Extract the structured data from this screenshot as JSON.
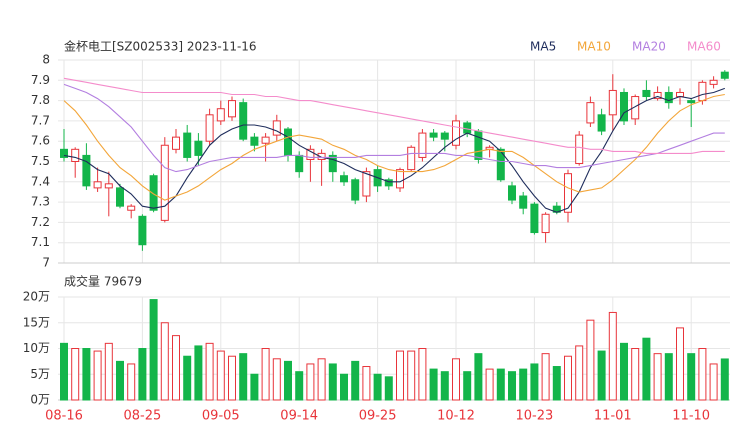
{
  "chart_data": {
    "type": "candlestick",
    "title": "金杯电工[SZ002533] 2023-11-16",
    "up_color": "#e8343a",
    "down_color": "#13b54a",
    "grid": true,
    "legend": "top-right",
    "categories": [
      "08-16",
      null,
      null,
      null,
      null,
      null,
      null,
      "08-25",
      null,
      null,
      null,
      null,
      null,
      null,
      "09-05",
      null,
      null,
      null,
      null,
      null,
      null,
      "09-14",
      null,
      null,
      null,
      null,
      null,
      null,
      "09-25",
      null,
      null,
      null,
      null,
      null,
      null,
      "10-12",
      null,
      null,
      null,
      null,
      null,
      null,
      "10-23",
      null,
      null,
      null,
      null,
      null,
      null,
      "11-01",
      null,
      null,
      null,
      null,
      null,
      null,
      "11-10",
      null,
      null,
      null
    ],
    "open": [
      7.56,
      7.5,
      7.53,
      7.37,
      7.37,
      7.37,
      7.26,
      7.23,
      7.43,
      7.21,
      7.56,
      7.64,
      7.6,
      7.6,
      7.7,
      7.72,
      7.79,
      7.62,
      7.59,
      7.63,
      7.66,
      7.53,
      7.51,
      7.51,
      7.53,
      7.43,
      7.41,
      7.33,
      7.46,
      7.41,
      7.37,
      7.46,
      7.52,
      7.64,
      7.64,
      7.58,
      7.69,
      7.65,
      7.56,
      7.56,
      7.38,
      7.33,
      7.29,
      7.15,
      7.28,
      7.25,
      7.49,
      7.69,
      7.73,
      7.73,
      7.84,
      7.71,
      7.85,
      7.81,
      7.84,
      7.82,
      7.8,
      7.8,
      7.88,
      7.94
    ],
    "high": [
      7.66,
      7.57,
      7.59,
      7.47,
      7.45,
      7.39,
      7.29,
      7.24,
      7.44,
      7.62,
      7.66,
      7.68,
      7.64,
      7.76,
      7.8,
      7.82,
      7.81,
      7.64,
      7.64,
      7.73,
      7.67,
      7.55,
      7.58,
      7.56,
      7.55,
      7.45,
      7.42,
      7.47,
      7.48,
      7.42,
      7.47,
      7.58,
      7.66,
      7.66,
      7.65,
      7.73,
      7.7,
      7.66,
      7.58,
      7.57,
      7.4,
      7.35,
      7.3,
      7.25,
      7.3,
      7.46,
      7.65,
      7.82,
      7.76,
      7.93,
      7.86,
      7.83,
      7.9,
      7.87,
      7.87,
      7.86,
      7.81,
      7.9,
      7.92,
      7.95
    ],
    "low": [
      7.5,
      7.42,
      7.36,
      7.35,
      7.23,
      7.27,
      7.22,
      7.06,
      7.25,
      7.2,
      7.54,
      7.5,
      7.48,
      7.58,
      7.68,
      7.7,
      7.6,
      7.55,
      7.5,
      7.6,
      7.5,
      7.42,
      7.4,
      7.38,
      7.4,
      7.38,
      7.29,
      7.3,
      7.35,
      7.36,
      7.35,
      7.45,
      7.5,
      7.6,
      7.55,
      7.56,
      7.62,
      7.49,
      7.52,
      7.4,
      7.29,
      7.24,
      7.14,
      7.1,
      7.24,
      7.2,
      7.48,
      7.67,
      7.63,
      7.65,
      7.68,
      7.68,
      7.8,
      7.8,
      7.76,
      7.78,
      7.67,
      7.78,
      7.86,
      7.9
    ],
    "close": [
      7.52,
      7.56,
      7.38,
      7.4,
      7.39,
      7.28,
      7.28,
      7.09,
      7.26,
      7.58,
      7.62,
      7.52,
      7.53,
      7.73,
      7.76,
      7.8,
      7.61,
      7.58,
      7.62,
      7.7,
      7.53,
      7.45,
      7.56,
      7.54,
      7.45,
      7.4,
      7.31,
      7.45,
      7.38,
      7.38,
      7.46,
      7.57,
      7.64,
      7.62,
      7.61,
      7.7,
      7.64,
      7.51,
      7.57,
      7.41,
      7.31,
      7.27,
      7.15,
      7.24,
      7.25,
      7.44,
      7.63,
      7.79,
      7.65,
      7.85,
      7.7,
      7.82,
      7.82,
      7.84,
      7.79,
      7.84,
      7.79,
      7.89,
      7.9,
      7.91
    ],
    "ylim": [
      7,
      8
    ],
    "yticks": [
      7,
      7.1,
      7.2,
      7.3,
      7.4,
      7.5,
      7.6,
      7.7,
      7.8,
      7.9,
      8
    ],
    "series": [
      {
        "name": "MA5",
        "color": "#1f2d5c",
        "values": [
          7.53,
          7.52,
          7.5,
          7.46,
          7.44,
          7.38,
          7.34,
          7.28,
          7.27,
          7.28,
          7.33,
          7.42,
          7.5,
          7.58,
          7.63,
          7.66,
          7.68,
          7.68,
          7.67,
          7.65,
          7.62,
          7.58,
          7.55,
          7.52,
          7.51,
          7.49,
          7.46,
          7.44,
          7.42,
          7.4,
          7.4,
          7.43,
          7.47,
          7.52,
          7.57,
          7.61,
          7.64,
          7.62,
          7.6,
          7.55,
          7.48,
          7.4,
          7.33,
          7.27,
          7.25,
          7.27,
          7.35,
          7.47,
          7.55,
          7.65,
          7.74,
          7.77,
          7.8,
          7.82,
          7.8,
          7.82,
          7.81,
          7.83,
          7.84,
          7.86
        ]
      },
      {
        "name": "MA10",
        "color": "#f3a63a",
        "values": [
          7.8,
          7.75,
          7.68,
          7.6,
          7.53,
          7.47,
          7.43,
          7.38,
          7.34,
          7.31,
          7.33,
          7.35,
          7.38,
          7.42,
          7.46,
          7.49,
          7.53,
          7.56,
          7.58,
          7.6,
          7.62,
          7.63,
          7.62,
          7.61,
          7.58,
          7.56,
          7.53,
          7.51,
          7.48,
          7.46,
          7.45,
          7.45,
          7.45,
          7.46,
          7.48,
          7.51,
          7.54,
          7.55,
          7.56,
          7.55,
          7.55,
          7.52,
          7.48,
          7.44,
          7.4,
          7.37,
          7.35,
          7.36,
          7.37,
          7.41,
          7.46,
          7.51,
          7.57,
          7.64,
          7.7,
          7.75,
          7.78,
          7.8,
          7.82,
          7.83
        ]
      },
      {
        "name": "MA20",
        "color": "#b37fe0",
        "values": [
          7.88,
          7.86,
          7.84,
          7.81,
          7.77,
          7.72,
          7.67,
          7.6,
          7.53,
          7.47,
          7.45,
          7.46,
          7.48,
          7.5,
          7.51,
          7.52,
          7.52,
          7.52,
          7.52,
          7.52,
          7.53,
          7.53,
          7.52,
          7.52,
          7.52,
          7.52,
          7.52,
          7.53,
          7.53,
          7.53,
          7.53,
          7.54,
          7.54,
          7.54,
          7.54,
          7.53,
          7.53,
          7.52,
          7.51,
          7.5,
          7.5,
          7.49,
          7.48,
          7.48,
          7.47,
          7.47,
          7.47,
          7.48,
          7.49,
          7.5,
          7.51,
          7.52,
          7.53,
          7.54,
          7.56,
          7.58,
          7.6,
          7.62,
          7.64,
          7.64
        ]
      },
      {
        "name": "MA60",
        "color": "#f48ccb",
        "values": [
          7.91,
          7.9,
          7.89,
          7.88,
          7.87,
          7.86,
          7.85,
          7.84,
          7.84,
          7.84,
          7.84,
          7.84,
          7.84,
          7.84,
          7.84,
          7.83,
          7.83,
          7.83,
          7.82,
          7.82,
          7.81,
          7.8,
          7.8,
          7.79,
          7.78,
          7.77,
          7.76,
          7.75,
          7.74,
          7.73,
          7.72,
          7.71,
          7.7,
          7.69,
          7.68,
          7.67,
          7.66,
          7.65,
          7.64,
          7.63,
          7.62,
          7.61,
          7.6,
          7.59,
          7.58,
          7.57,
          7.57,
          7.56,
          7.56,
          7.55,
          7.55,
          7.55,
          7.54,
          7.54,
          7.54,
          7.54,
          7.54,
          7.55,
          7.55,
          7.55
        ]
      }
    ],
    "volume": {
      "title": "成交量 79679",
      "values": [
        11,
        10,
        10,
        9.5,
        11,
        7.5,
        7,
        10,
        19.5,
        15,
        12.5,
        8.5,
        10.5,
        11,
        9.5,
        8.5,
        9,
        5,
        10,
        8,
        7.5,
        5.5,
        7,
        8,
        7,
        5,
        7.5,
        6.5,
        5,
        4.5,
        9.5,
        9.5,
        10,
        6,
        5.5,
        8,
        5.5,
        9,
        6,
        6,
        5.5,
        6,
        7,
        9,
        6.5,
        8.5,
        10.5,
        15.5,
        9.5,
        17,
        11,
        10,
        12,
        9,
        9,
        14,
        9,
        10,
        7,
        7.97
      ],
      "ylim": [
        0,
        20
      ],
      "yticks": [
        {
          "value": 0,
          "label": "0万"
        },
        {
          "value": 5,
          "label": "5万"
        },
        {
          "value": 10,
          "label": "10万"
        },
        {
          "value": 15,
          "label": "15万"
        },
        {
          "value": 20,
          "label": "20万"
        }
      ]
    }
  }
}
